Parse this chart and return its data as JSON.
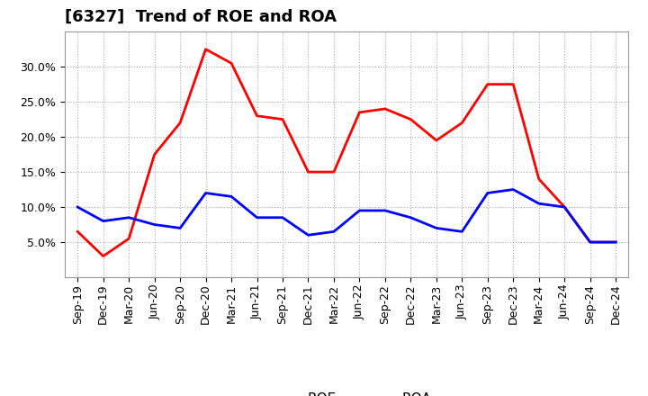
{
  "title": "[6327]  Trend of ROE and ROA",
  "labels": [
    "Sep-19",
    "Dec-19",
    "Mar-20",
    "Jun-20",
    "Sep-20",
    "Dec-20",
    "Mar-21",
    "Jun-21",
    "Sep-21",
    "Dec-21",
    "Mar-22",
    "Jun-22",
    "Sep-22",
    "Dec-22",
    "Mar-23",
    "Jun-23",
    "Sep-23",
    "Dec-23",
    "Mar-24",
    "Jun-24",
    "Sep-24",
    "Dec-24"
  ],
  "ROE": [
    6.5,
    3.0,
    5.5,
    17.5,
    22.0,
    32.5,
    30.5,
    23.0,
    22.5,
    15.0,
    15.0,
    23.5,
    24.0,
    22.5,
    19.5,
    22.0,
    27.5,
    27.5,
    14.0,
    10.0,
    5.0,
    5.0
  ],
  "ROA": [
    10.0,
    8.0,
    8.5,
    7.5,
    7.0,
    12.0,
    11.5,
    8.5,
    8.5,
    6.0,
    6.5,
    9.5,
    9.5,
    8.5,
    7.0,
    6.5,
    12.0,
    12.5,
    10.5,
    10.0,
    5.0,
    5.0
  ],
  "ROE_color": "#FF0000",
  "ROA_color": "#0000FF",
  "background_color": "#FFFFFF",
  "grid_color": "#AAAAAA",
  "ylim": [
    0,
    35
  ],
  "yticks": [
    5.0,
    10.0,
    15.0,
    20.0,
    25.0,
    30.0
  ],
  "title_fontsize": 13,
  "tick_fontsize": 9,
  "legend_fontsize": 11
}
